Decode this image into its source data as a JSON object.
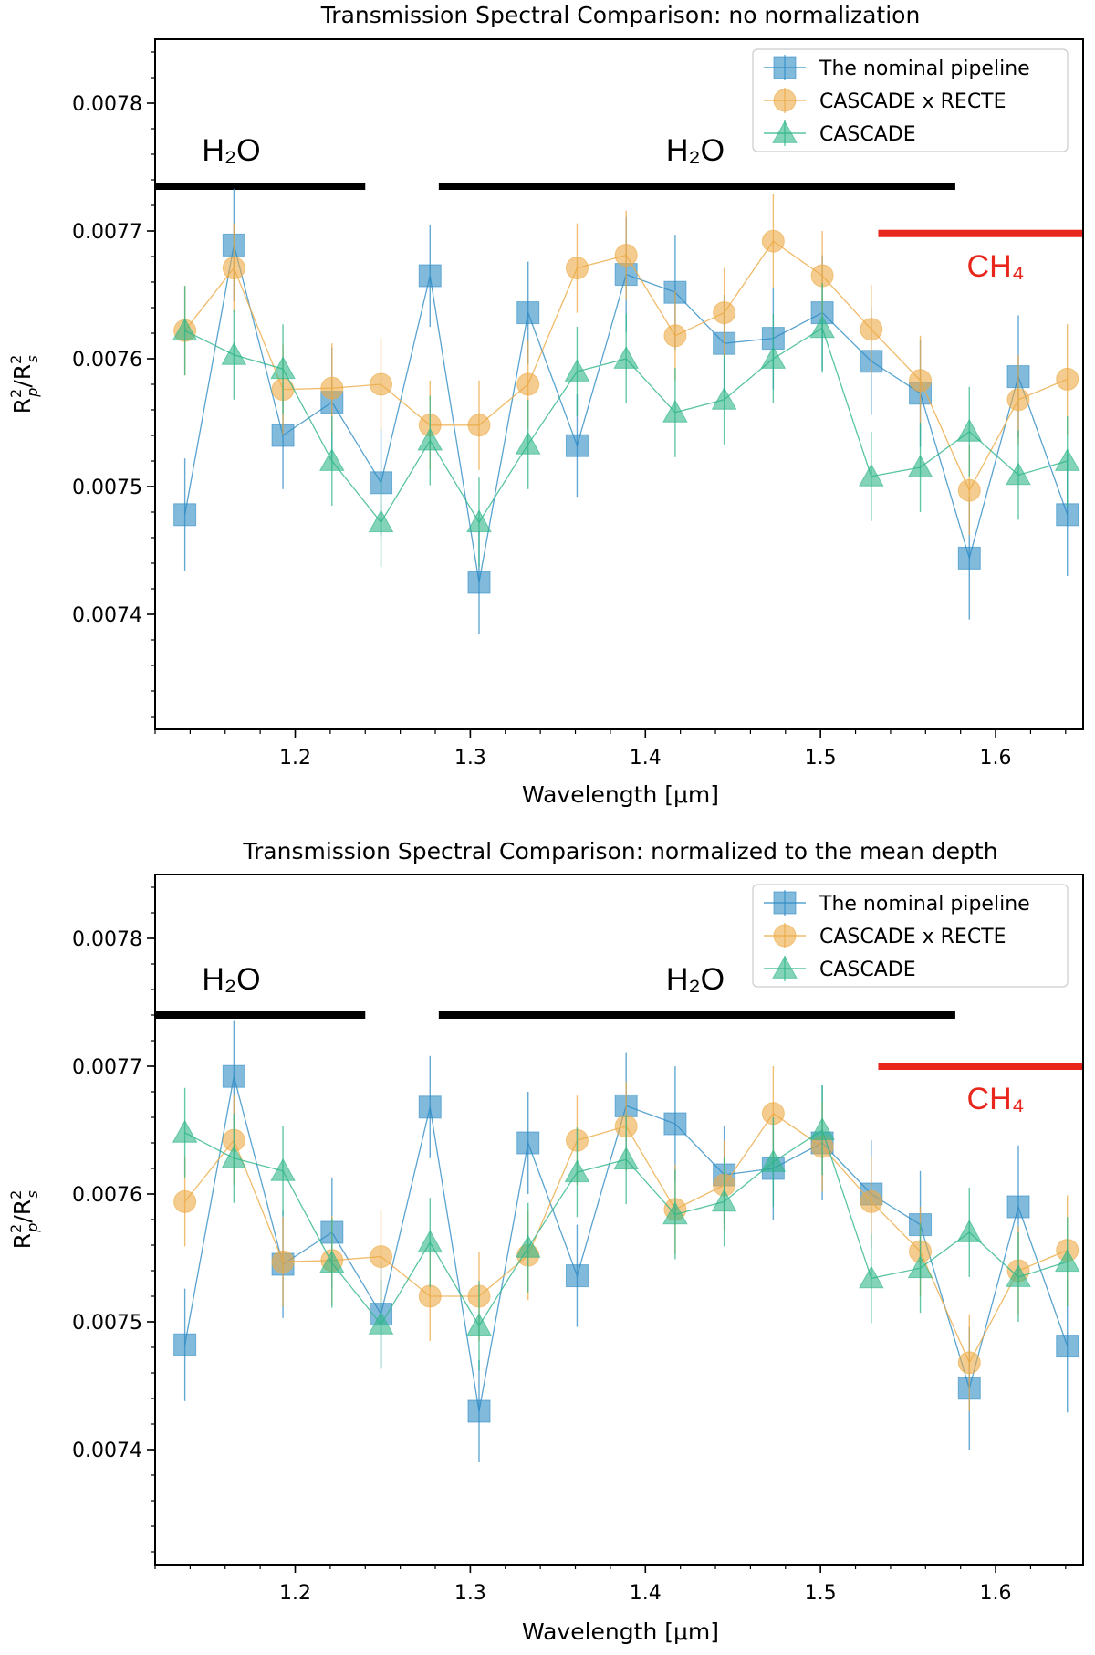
{
  "chart_data": [
    {
      "type": "scatter",
      "title": "Transmission Spectral Comparison: no normalization",
      "xlabel": "Wavelength [μm]",
      "ylabel": "R²p/R²s",
      "xlim": [
        1.12,
        1.65
      ],
      "ylim": [
        0.00731,
        0.00785
      ],
      "xticks": [
        "1.2",
        "1.3",
        "1.4",
        "1.5",
        "1.6"
      ],
      "yticks": [
        "0.0074",
        "0.0075",
        "0.0076",
        "0.0077",
        "0.0078"
      ],
      "legend_position": "top-right",
      "features": [
        {
          "label": "H₂O",
          "x_start": 1.12,
          "x_end": 1.24,
          "y": 0.007735,
          "color": "#000000"
        },
        {
          "label": "H₂O",
          "x_start": 1.282,
          "x_end": 1.577,
          "y": 0.007735,
          "color": "#000000"
        },
        {
          "label": "CH₄",
          "x_start": 1.533,
          "x_end": 1.65,
          "y": 0.007698,
          "color": "#e8261b"
        }
      ],
      "series": [
        {
          "name": "The nominal pipeline",
          "marker": "square",
          "color": "#2f8cc4",
          "x": [
            1.137,
            1.165,
            1.193,
            1.221,
            1.249,
            1.277,
            1.305,
            1.333,
            1.361,
            1.389,
            1.417,
            1.445,
            1.473,
            1.501,
            1.529,
            1.557,
            1.585,
            1.613,
            1.641
          ],
          "y": [
            0.007478,
            0.007689,
            0.00754,
            0.007566,
            0.007503,
            0.007665,
            0.007425,
            0.007636,
            0.007532,
            0.007666,
            0.007652,
            0.007612,
            0.007616,
            0.007636,
            0.007598,
            0.007573,
            0.007444,
            0.007586,
            0.007478
          ],
          "yerr": [
            4.4e-05,
            4.4e-05,
            4.2e-05,
            4.3e-05,
            4.2e-05,
            4e-05,
            4e-05,
            4e-05,
            4e-05,
            4.5e-05,
            4.5e-05,
            3.8e-05,
            4e-05,
            4.5e-05,
            4.2e-05,
            4.2e-05,
            4.8e-05,
            4.8e-05,
            4.8e-05
          ]
        },
        {
          "name": "CASCADE x RECTE",
          "marker": "circle",
          "color": "#ecaa45",
          "x": [
            1.137,
            1.165,
            1.193,
            1.221,
            1.249,
            1.277,
            1.305,
            1.333,
            1.361,
            1.389,
            1.417,
            1.445,
            1.473,
            1.501,
            1.529,
            1.557,
            1.585,
            1.613,
            1.641
          ],
          "y": [
            0.007622,
            0.007671,
            0.007576,
            0.007577,
            0.00758,
            0.007548,
            0.007548,
            0.00758,
            0.007671,
            0.007681,
            0.007618,
            0.007636,
            0.007692,
            0.007665,
            0.007623,
            0.007583,
            0.007497,
            0.007568,
            0.007584
          ],
          "yerr": [
            3.5e-05,
            3.5e-05,
            3.5e-05,
            3.5e-05,
            3.6e-05,
            3.5e-05,
            3.5e-05,
            3.5e-05,
            3.5e-05,
            3.5e-05,
            3.5e-05,
            3.5e-05,
            3.7e-05,
            3.5e-05,
            3.5e-05,
            3.5e-05,
            3.5e-05,
            3.5e-05,
            4.3e-05
          ]
        },
        {
          "name": "CASCADE",
          "marker": "triangle",
          "color": "#2fb589",
          "x": [
            1.137,
            1.165,
            1.193,
            1.221,
            1.249,
            1.277,
            1.305,
            1.333,
            1.361,
            1.389,
            1.417,
            1.445,
            1.473,
            1.501,
            1.529,
            1.557,
            1.585,
            1.613,
            1.641
          ],
          "y": [
            0.007622,
            0.007603,
            0.007592,
            0.00752,
            0.007472,
            0.007536,
            0.007472,
            0.007533,
            0.00759,
            0.0076,
            0.007558,
            0.007568,
            0.0076,
            0.007624,
            0.007508,
            0.007515,
            0.007543,
            0.007509,
            0.00752
          ],
          "yerr": [
            3.5e-05,
            3.5e-05,
            3.5e-05,
            3.5e-05,
            3.5e-05,
            3.5e-05,
            3.5e-05,
            3.5e-05,
            3.5e-05,
            3.5e-05,
            3.5e-05,
            3.5e-05,
            3.5e-05,
            3.5e-05,
            3.5e-05,
            3.5e-05,
            3.5e-05,
            3.5e-05,
            3.5e-05
          ]
        }
      ]
    },
    {
      "type": "scatter",
      "title": "Transmission Spectral Comparison: normalized to the mean depth",
      "xlabel": "Wavelength [μm]",
      "ylabel": "R²p/R²s",
      "xlim": [
        1.12,
        1.65
      ],
      "ylim": [
        0.00731,
        0.00785
      ],
      "xticks": [
        "1.2",
        "1.3",
        "1.4",
        "1.5",
        "1.6"
      ],
      "yticks": [
        "0.0074",
        "0.0075",
        "0.0076",
        "0.0077",
        "0.0078"
      ],
      "legend_position": "top-right",
      "features": [
        {
          "label": "H₂O",
          "x_start": 1.12,
          "x_end": 1.24,
          "y": 0.00774,
          "color": "#000000"
        },
        {
          "label": "H₂O",
          "x_start": 1.282,
          "x_end": 1.577,
          "y": 0.00774,
          "color": "#000000"
        },
        {
          "label": "CH₄",
          "x_start": 1.533,
          "x_end": 1.65,
          "y": 0.0077,
          "color": "#e8261b"
        }
      ],
      "series": [
        {
          "name": "The nominal pipeline",
          "marker": "square",
          "color": "#2f8cc4",
          "x": [
            1.137,
            1.165,
            1.193,
            1.221,
            1.249,
            1.277,
            1.305,
            1.333,
            1.361,
            1.389,
            1.417,
            1.445,
            1.473,
            1.501,
            1.529,
            1.557,
            1.585,
            1.613,
            1.641
          ],
          "y": [
            0.007482,
            0.007692,
            0.007545,
            0.00757,
            0.007506,
            0.007668,
            0.00743,
            0.00764,
            0.007536,
            0.007669,
            0.007655,
            0.007615,
            0.00762,
            0.00764,
            0.0076,
            0.007576,
            0.007448,
            0.00759,
            0.007481
          ],
          "yerr": [
            4.4e-05,
            4.4e-05,
            4.2e-05,
            4.3e-05,
            4.2e-05,
            4e-05,
            4e-05,
            4e-05,
            4e-05,
            4.2e-05,
            4.5e-05,
            3.8e-05,
            4e-05,
            4.5e-05,
            4.2e-05,
            4.2e-05,
            4.8e-05,
            4.8e-05,
            5.2e-05
          ]
        },
        {
          "name": "CASCADE x RECTE",
          "marker": "circle",
          "color": "#ecaa45",
          "x": [
            1.137,
            1.165,
            1.193,
            1.221,
            1.249,
            1.277,
            1.305,
            1.333,
            1.361,
            1.389,
            1.417,
            1.445,
            1.473,
            1.501,
            1.529,
            1.557,
            1.585,
            1.613,
            1.641
          ],
          "y": [
            0.007594,
            0.007642,
            0.007547,
            0.007548,
            0.007551,
            0.00752,
            0.00752,
            0.007552,
            0.007642,
            0.007653,
            0.007588,
            0.007607,
            0.007663,
            0.007637,
            0.007594,
            0.007555,
            0.007468,
            0.00754,
            0.007556
          ],
          "yerr": [
            3.5e-05,
            3.5e-05,
            3.5e-05,
            3.5e-05,
            3.6e-05,
            3.5e-05,
            3.5e-05,
            3.5e-05,
            3.5e-05,
            3.5e-05,
            3.5e-05,
            3.5e-05,
            3.7e-05,
            3.5e-05,
            3.5e-05,
            3.5e-05,
            3.8e-05,
            3.5e-05,
            4.3e-05
          ]
        },
        {
          "name": "CASCADE",
          "marker": "triangle",
          "color": "#2fb589",
          "x": [
            1.137,
            1.165,
            1.193,
            1.221,
            1.249,
            1.277,
            1.305,
            1.333,
            1.361,
            1.389,
            1.417,
            1.445,
            1.473,
            1.501,
            1.529,
            1.557,
            1.585,
            1.613,
            1.641
          ],
          "y": [
            0.007648,
            0.007628,
            0.007618,
            0.007546,
            0.007498,
            0.007562,
            0.007497,
            0.007558,
            0.007617,
            0.007627,
            0.007584,
            0.007594,
            0.007625,
            0.00765,
            0.007534,
            0.007542,
            0.00757,
            0.007535,
            0.007547
          ],
          "yerr": [
            3.5e-05,
            3.5e-05,
            3.5e-05,
            3.5e-05,
            3.5e-05,
            3.5e-05,
            3.5e-05,
            3.5e-05,
            3.5e-05,
            3.5e-05,
            3.5e-05,
            3.5e-05,
            3.5e-05,
            3.5e-05,
            3.5e-05,
            3.5e-05,
            3.5e-05,
            3.5e-05,
            3.5e-05
          ]
        }
      ]
    }
  ]
}
